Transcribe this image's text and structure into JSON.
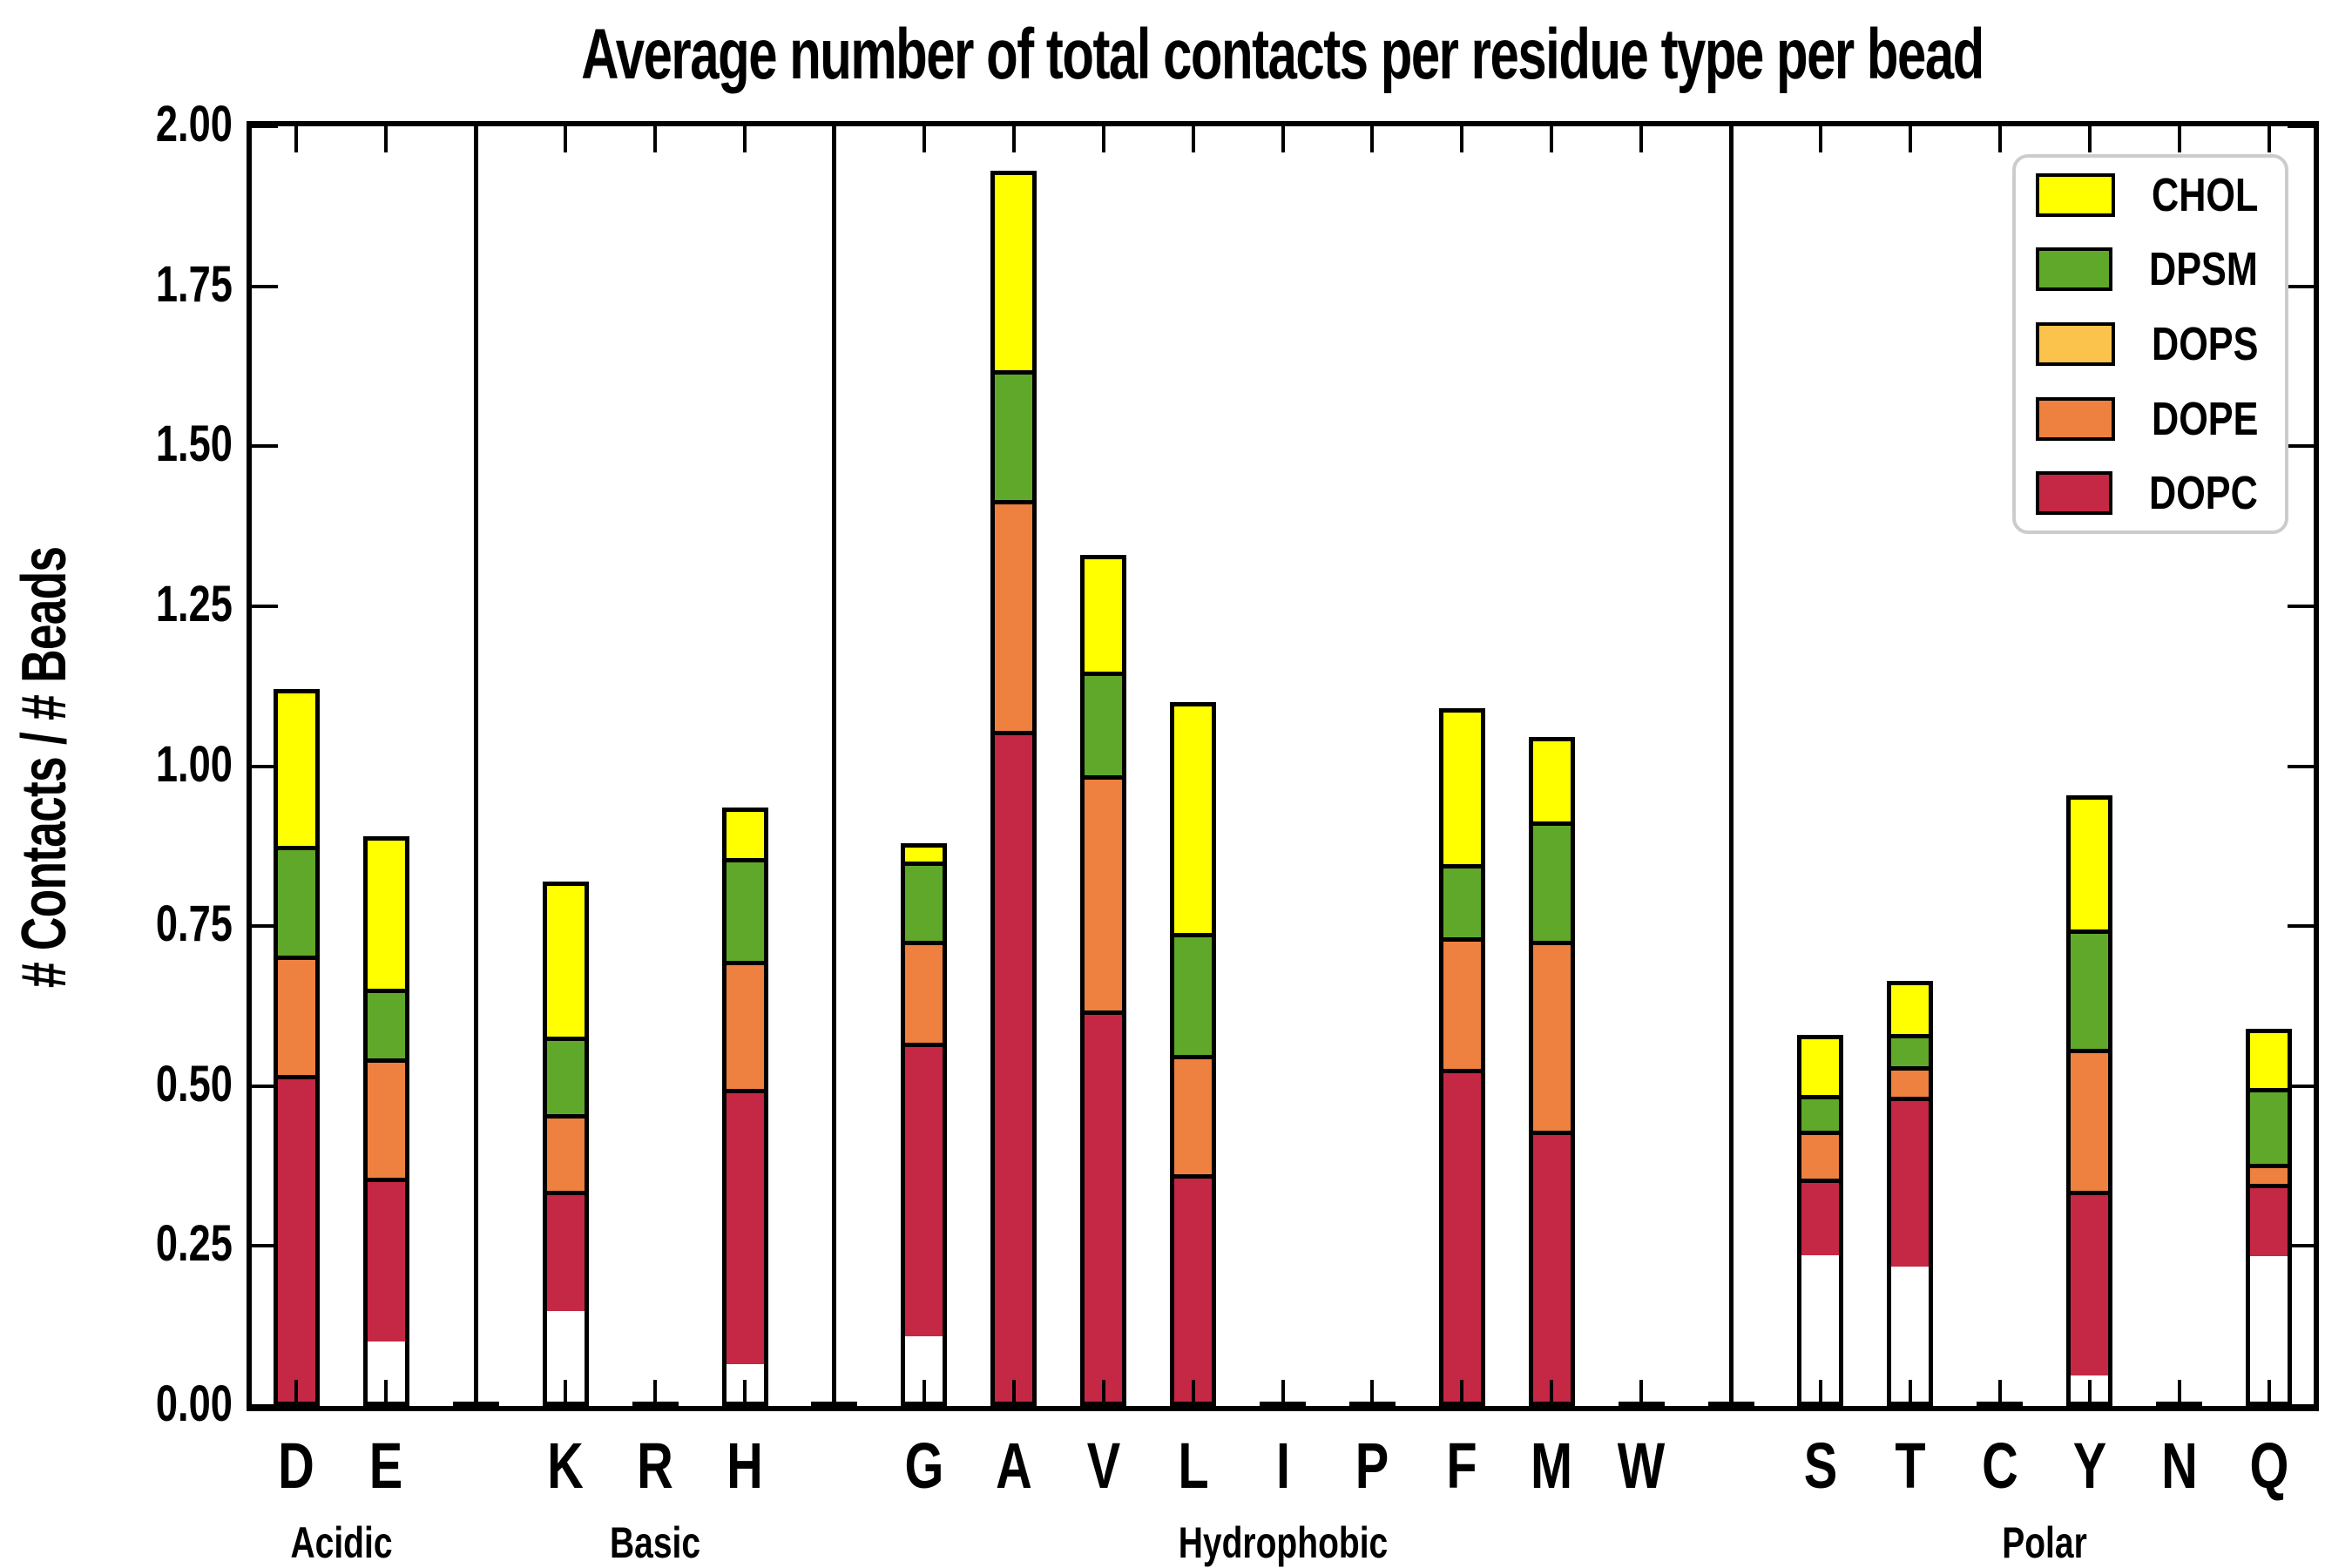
{
  "chart_data": {
    "type": "bar",
    "stacked": true,
    "title": "Average number of total contacts per residue type per bead",
    "ylabel": "# Contacts / # Beads",
    "xlabel": "",
    "ylim": [
      0,
      2.0
    ],
    "ytick_step": 0.25,
    "ytick_labels": [
      "0.00",
      "0.25",
      "0.50",
      "0.75",
      "1.00",
      "1.25",
      "1.50",
      "1.75",
      "2.00"
    ],
    "grid": false,
    "legend": {
      "position": "upper-right",
      "entries": [
        "CHOL",
        "DPSM",
        "DOPS",
        "DOPE",
        "DOPC"
      ]
    },
    "series_bottom_to_top": [
      "DOPC",
      "DOPE",
      "DOPS",
      "DPSM",
      "CHOL"
    ],
    "colors": {
      "CHOL": "#ffff00",
      "DPSM": "#60a82a",
      "DOPS": "#fbc34c",
      "DOPE": "#ee8040",
      "DOPC": "#c42844",
      "axis": "#000000",
      "legend_border": "#cccccc",
      "background": "#ffffff"
    },
    "groups": [
      {
        "label": "Acidic",
        "residues": [
          "D",
          "E"
        ]
      },
      {
        "label": "Basic",
        "residues": [
          "K",
          "R",
          "H"
        ]
      },
      {
        "label": "Hydrophobic",
        "residues": [
          "G",
          "A",
          "V",
          "L",
          "I",
          "P",
          "F",
          "M",
          "W"
        ]
      },
      {
        "label": "Polar",
        "residues": [
          "S",
          "T",
          "C",
          "Y",
          "N",
          "Q"
        ]
      }
    ],
    "values": {
      "D": {
        "DOPC": 0.52,
        "DOPE": 0.185,
        "DOPS": 0,
        "DPSM": 0.17,
        "CHOL": 0.245
      },
      "E": {
        "DOPC": 0.29,
        "DOPE": 0.21,
        "DOPS": 0,
        "DPSM": 0.12,
        "CHOL": 0.27
      },
      "K": {
        "DOPC": 0.23,
        "DOPE": 0.145,
        "DOPS": 0,
        "DPSM": 0.145,
        "CHOL": 0.3
      },
      "R": {
        "DOPC": 0,
        "DOPE": 0,
        "DOPS": 0,
        "DPSM": 0,
        "CHOL": 0
      },
      "H": {
        "DOPC": 0.47,
        "DOPE": 0.215,
        "DOPS": 0,
        "DPSM": 0.17,
        "CHOL": 0.08
      },
      "G": {
        "DOPC": 0.535,
        "DOPE": 0.18,
        "DOPS": 0,
        "DPSM": 0.14,
        "CHOL": 0.025
      },
      "A": {
        "DOPC": 1.06,
        "DOPE": 0.36,
        "DOPS": 0,
        "DPSM": 0.2,
        "CHOL": 0.31
      },
      "V": {
        "DOPC": 0.62,
        "DOPE": 0.37,
        "DOPS": 0,
        "DPSM": 0.16,
        "CHOL": 0.18
      },
      "L": {
        "DOPC": 0.36,
        "DOPE": 0.185,
        "DOPS": 0,
        "DPSM": 0.19,
        "CHOL": 0.365
      },
      "I": {
        "DOPC": 0,
        "DOPE": 0,
        "DOPS": 0,
        "DPSM": 0,
        "CHOL": 0
      },
      "P": {
        "DOPC": 0,
        "DOPE": 0,
        "DOPS": 0,
        "DPSM": 0,
        "CHOL": 0
      },
      "F": {
        "DOPC": 0.53,
        "DOPE": 0.205,
        "DOPS": 0,
        "DPSM": 0.11,
        "CHOL": 0.245
      },
      "M": {
        "DOPC": 0.43,
        "DOPE": 0.3,
        "DOPS": 0,
        "DPSM": 0.185,
        "CHOL": 0.13
      },
      "W": {
        "DOPC": 0,
        "DOPE": 0,
        "DOPS": 0,
        "DPSM": 0,
        "CHOL": 0
      },
      "S": {
        "DOPC": 0.205,
        "DOPE": 0.125,
        "DOPS": 0,
        "DPSM": 0.09,
        "CHOL": 0.16
      },
      "T": {
        "DOPC": 0.41,
        "DOPE": 0.065,
        "DOPS": 0,
        "DPSM": 0.07,
        "CHOL": 0.12
      },
      "C": {
        "DOPC": 0,
        "DOPE": 0,
        "DOPS": 0,
        "DPSM": 0,
        "CHOL": 0
      },
      "Y": {
        "DOPC": 0.305,
        "DOPE": 0.235,
        "DOPS": 0,
        "DPSM": 0.195,
        "CHOL": 0.22
      },
      "N": {
        "DOPC": 0,
        "DOPE": 0,
        "DOPS": 0,
        "DPSM": 0,
        "CHOL": 0
      },
      "Q": {
        "DOPC": 0.19,
        "DOPE": 0.045,
        "DOPS": 0,
        "DPSM": 0.2,
        "CHOL": 0.155
      }
    }
  }
}
